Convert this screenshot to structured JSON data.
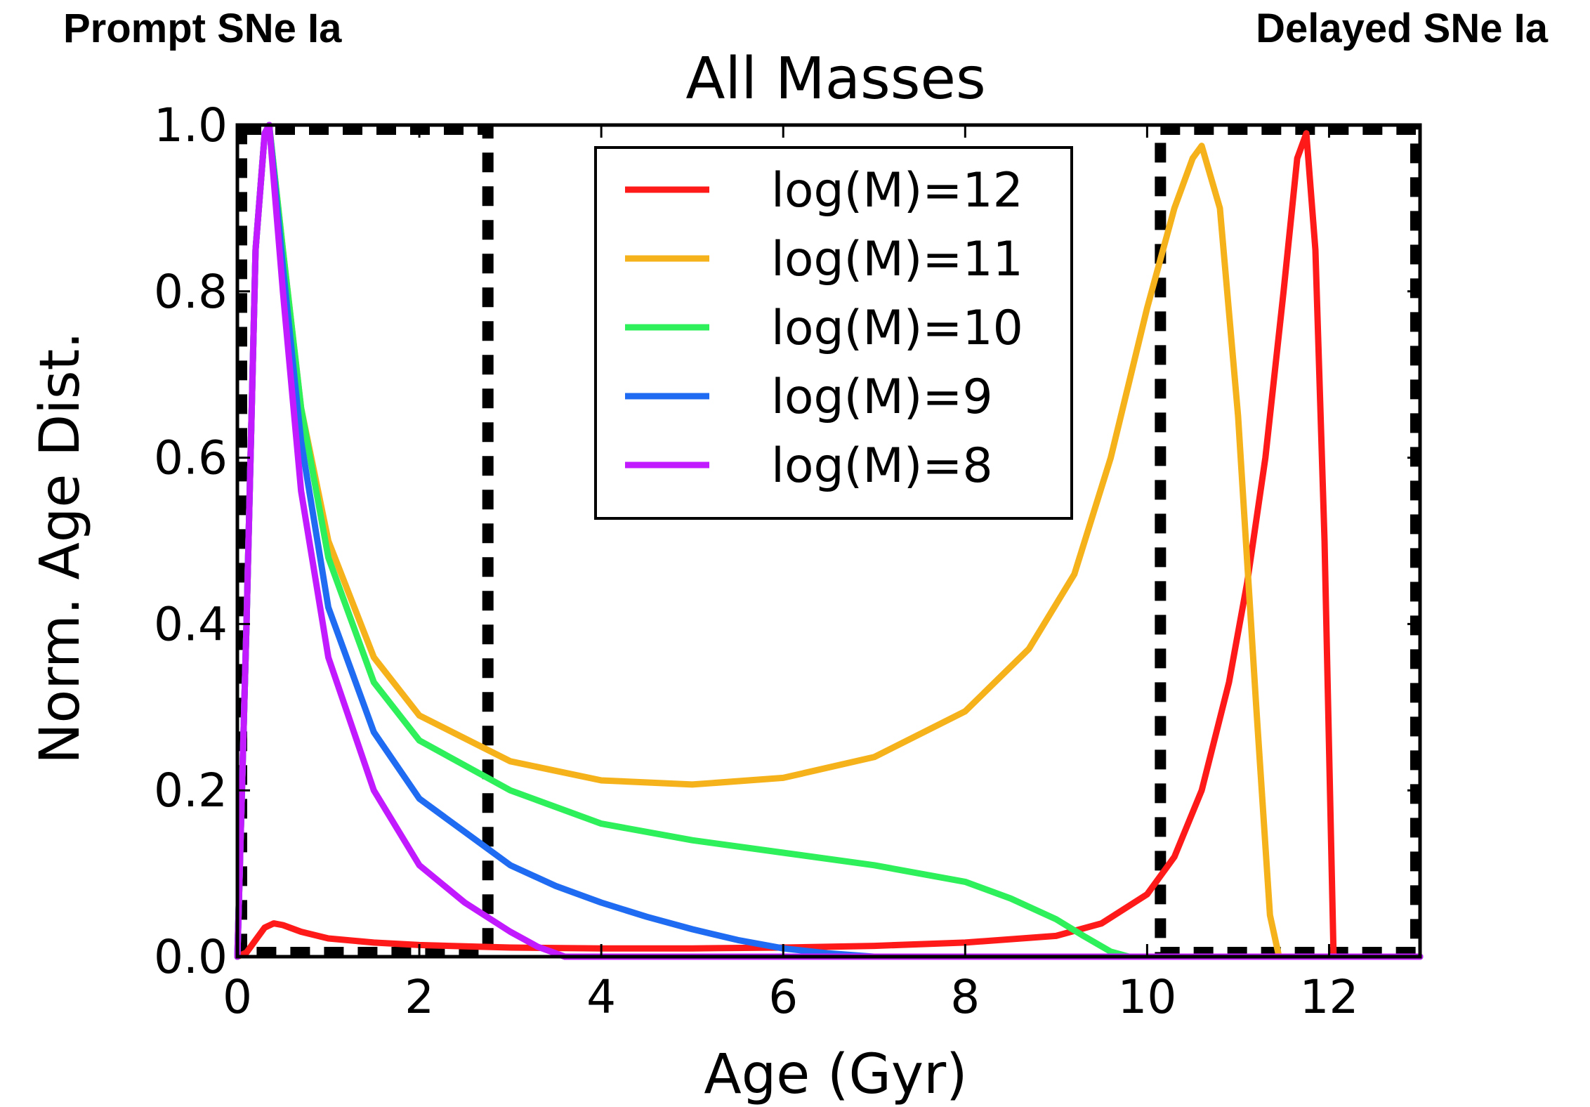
{
  "annotations": {
    "left": "Prompt SNe Ia",
    "right": "Delayed SNe Ia"
  },
  "chart_data": {
    "type": "line",
    "title": "All Masses",
    "xlabel": "Age (Gyr)",
    "ylabel": "Norm. Age Dist.",
    "xlim": [
      0,
      13
    ],
    "ylim": [
      0,
      1.0
    ],
    "xticks": [
      0,
      2,
      4,
      6,
      8,
      10,
      12
    ],
    "yticks": [
      0.0,
      0.2,
      0.4,
      0.6,
      0.8,
      1.0
    ],
    "ytick_labels": [
      "0.0",
      "0.2",
      "0.4",
      "0.6",
      "0.8",
      "1.0"
    ],
    "legend_position": "upper-center",
    "grid": false,
    "series": [
      {
        "name": "log(M)=12",
        "color": "#ff1a1a",
        "x": [
          0.0,
          0.1,
          0.2,
          0.3,
          0.4,
          0.5,
          0.7,
          1.0,
          1.5,
          2.0,
          3.0,
          4.0,
          5.0,
          6.0,
          7.0,
          8.0,
          9.0,
          9.5,
          10.0,
          10.3,
          10.6,
          10.9,
          11.1,
          11.3,
          11.5,
          11.65,
          11.75,
          11.85,
          11.95,
          12.05,
          12.3,
          13.0
        ],
        "y": [
          0.0,
          0.005,
          0.02,
          0.035,
          0.04,
          0.038,
          0.03,
          0.022,
          0.017,
          0.014,
          0.011,
          0.01,
          0.01,
          0.011,
          0.013,
          0.017,
          0.025,
          0.04,
          0.075,
          0.12,
          0.2,
          0.33,
          0.45,
          0.6,
          0.8,
          0.96,
          0.99,
          0.85,
          0.5,
          0.0,
          0.0,
          0.0
        ]
      },
      {
        "name": "log(M)=11",
        "color": "#f6b21a",
        "x": [
          0.0,
          0.1,
          0.2,
          0.3,
          0.35,
          0.5,
          0.7,
          1.0,
          1.5,
          2.0,
          3.0,
          4.0,
          5.0,
          6.0,
          7.0,
          8.0,
          8.7,
          9.2,
          9.6,
          10.0,
          10.3,
          10.5,
          10.6,
          10.8,
          11.0,
          11.2,
          11.35,
          11.45,
          13.0
        ],
        "y": [
          0.0,
          0.4,
          0.85,
          0.99,
          1.0,
          0.85,
          0.66,
          0.5,
          0.36,
          0.29,
          0.235,
          0.212,
          0.207,
          0.215,
          0.24,
          0.295,
          0.37,
          0.46,
          0.6,
          0.78,
          0.9,
          0.96,
          0.975,
          0.9,
          0.65,
          0.3,
          0.05,
          0.0,
          0.0
        ]
      },
      {
        "name": "log(M)=10",
        "color": "#2ef05a",
        "x": [
          0.0,
          0.1,
          0.2,
          0.3,
          0.35,
          0.5,
          0.7,
          1.0,
          1.5,
          2.0,
          3.0,
          4.0,
          5.0,
          6.0,
          7.0,
          8.0,
          8.5,
          9.0,
          9.3,
          9.6,
          9.8,
          13.0
        ],
        "y": [
          0.0,
          0.4,
          0.85,
          0.99,
          1.0,
          0.85,
          0.66,
          0.48,
          0.33,
          0.26,
          0.2,
          0.16,
          0.14,
          0.125,
          0.11,
          0.09,
          0.07,
          0.045,
          0.025,
          0.006,
          0.0,
          0.0
        ]
      },
      {
        "name": "log(M)=9",
        "color": "#1f6cf2",
        "x": [
          0.0,
          0.1,
          0.2,
          0.3,
          0.35,
          0.5,
          0.7,
          1.0,
          1.5,
          2.0,
          2.5,
          3.0,
          3.5,
          4.0,
          4.5,
          5.0,
          5.5,
          6.0,
          6.5,
          7.0,
          13.0
        ],
        "y": [
          0.0,
          0.4,
          0.85,
          0.99,
          1.0,
          0.83,
          0.62,
          0.42,
          0.27,
          0.19,
          0.15,
          0.11,
          0.085,
          0.065,
          0.048,
          0.033,
          0.02,
          0.01,
          0.004,
          0.0,
          0.0
        ]
      },
      {
        "name": "log(M)=8",
        "color": "#c21aff",
        "x": [
          0.0,
          0.1,
          0.2,
          0.3,
          0.35,
          0.5,
          0.7,
          1.0,
          1.5,
          2.0,
          2.5,
          3.0,
          3.3,
          3.6,
          13.0
        ],
        "y": [
          0.0,
          0.4,
          0.85,
          0.99,
          1.0,
          0.8,
          0.56,
          0.36,
          0.2,
          0.11,
          0.065,
          0.03,
          0.012,
          0.0,
          0.0
        ]
      }
    ],
    "regions": [
      {
        "x0": 0.0,
        "x1": 2.8,
        "y0": 0.0,
        "y1": 1.0
      },
      {
        "x0": 10.1,
        "x1": 13.0,
        "y0": 0.0,
        "y1": 1.0
      }
    ]
  }
}
